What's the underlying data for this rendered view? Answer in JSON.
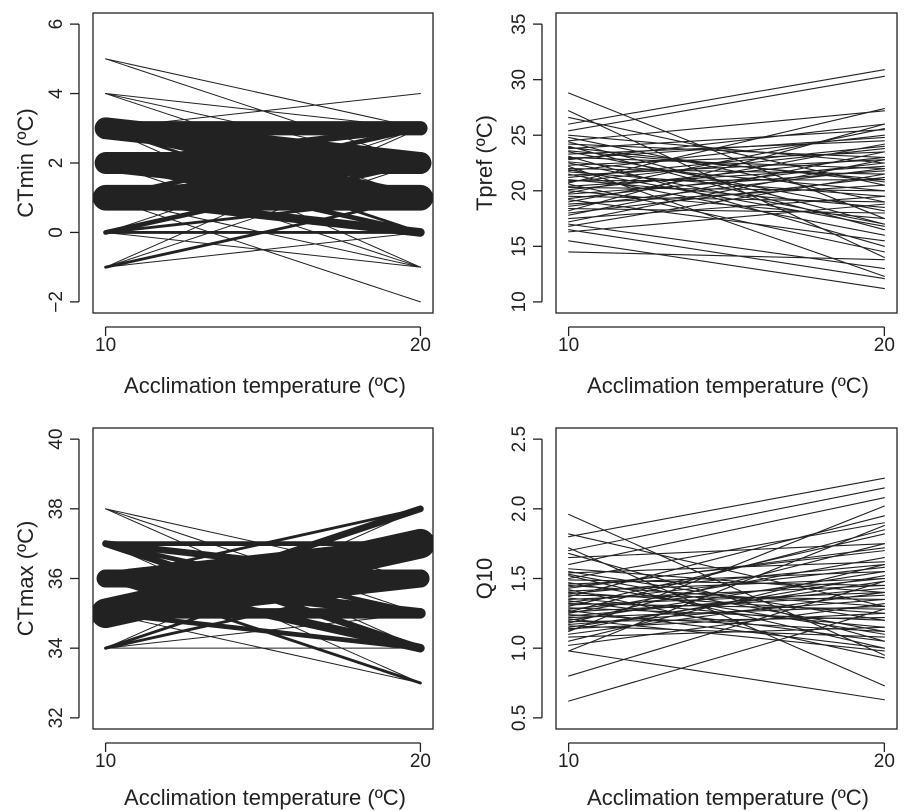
{
  "chart_data": [
    {
      "type": "line",
      "xlabel": "Acclimation temperature (ºC)",
      "ylabel": "CTmin (ºC)",
      "x": [
        10,
        20
      ],
      "xticks": [
        "10",
        "20"
      ],
      "ylim": [
        -2,
        6
      ],
      "yticks": [
        "−2",
        "0",
        "2",
        "4",
        "6"
      ],
      "grid": false,
      "series": [
        {
          "values": [
            5,
            3
          ],
          "weight": 1
        },
        {
          "values": [
            5,
            2
          ],
          "weight": 1
        },
        {
          "values": [
            4,
            3
          ],
          "weight": 1
        },
        {
          "values": [
            4,
            2
          ],
          "weight": 1
        },
        {
          "values": [
            4,
            1
          ],
          "weight": 1
        },
        {
          "values": [
            3,
            3
          ],
          "weight": 8
        },
        {
          "values": [
            3,
            2
          ],
          "weight": 12
        },
        {
          "values": [
            3,
            1
          ],
          "weight": 6
        },
        {
          "values": [
            3,
            0
          ],
          "weight": 2
        },
        {
          "values": [
            3,
            -1
          ],
          "weight": 1
        },
        {
          "values": [
            3,
            4
          ],
          "weight": 1
        },
        {
          "values": [
            2,
            3
          ],
          "weight": 4
        },
        {
          "values": [
            2,
            2
          ],
          "weight": 12
        },
        {
          "values": [
            2,
            1
          ],
          "weight": 10
        },
        {
          "values": [
            2,
            0
          ],
          "weight": 3
        },
        {
          "values": [
            2,
            -1
          ],
          "weight": 1
        },
        {
          "values": [
            1,
            3
          ],
          "weight": 3
        },
        {
          "values": [
            1,
            2
          ],
          "weight": 6
        },
        {
          "values": [
            1,
            1
          ],
          "weight": 14
        },
        {
          "values": [
            1,
            0
          ],
          "weight": 5
        },
        {
          "values": [
            1,
            -1
          ],
          "weight": 1
        },
        {
          "values": [
            1,
            -2
          ],
          "weight": 1
        },
        {
          "values": [
            0,
            3
          ],
          "weight": 1
        },
        {
          "values": [
            0,
            2
          ],
          "weight": 3
        },
        {
          "values": [
            0,
            1
          ],
          "weight": 2
        },
        {
          "values": [
            0,
            0
          ],
          "weight": 2
        },
        {
          "values": [
            0,
            -1
          ],
          "weight": 1
        },
        {
          "values": [
            -1,
            1
          ],
          "weight": 2
        },
        {
          "values": [
            -1,
            2
          ],
          "weight": 1
        },
        {
          "values": [
            -1,
            0
          ],
          "weight": 1
        },
        {
          "values": [
            -1,
            3
          ],
          "weight": 1
        }
      ]
    },
    {
      "type": "line",
      "xlabel": "Acclimation temperature (ºC)",
      "ylabel": "Tpref (ºC)",
      "x": [
        10,
        20
      ],
      "xticks": [
        "10",
        "20"
      ],
      "ylim": [
        10,
        35
      ],
      "yticks": [
        "10",
        "15",
        "20",
        "25",
        "30",
        "35"
      ],
      "grid": false,
      "series": [
        {
          "values": [
            28.8,
            17.5
          ]
        },
        {
          "values": [
            27.2,
            14.0
          ]
        },
        {
          "values": [
            26.6,
            20.5
          ]
        },
        {
          "values": [
            26.0,
            30.9
          ]
        },
        {
          "values": [
            25.4,
            30.3
          ]
        },
        {
          "values": [
            25.0,
            22.5
          ]
        },
        {
          "values": [
            24.8,
            19.0
          ]
        },
        {
          "values": [
            24.5,
            27.2
          ]
        },
        {
          "values": [
            24.2,
            23.0
          ]
        },
        {
          "values": [
            24.0,
            16.5
          ]
        },
        {
          "values": [
            23.8,
            25.5
          ]
        },
        {
          "values": [
            23.6,
            21.0
          ]
        },
        {
          "values": [
            23.5,
            18.2
          ]
        },
        {
          "values": [
            23.3,
            24.5
          ]
        },
        {
          "values": [
            23.1,
            15.0
          ]
        },
        {
          "values": [
            23.0,
            22.0
          ]
        },
        {
          "values": [
            22.8,
            26.0
          ]
        },
        {
          "values": [
            22.6,
            20.0
          ]
        },
        {
          "values": [
            22.5,
            17.0
          ]
        },
        {
          "values": [
            22.3,
            23.5
          ]
        },
        {
          "values": [
            22.2,
            12.3
          ]
        },
        {
          "values": [
            22.0,
            21.5
          ]
        },
        {
          "values": [
            21.8,
            25.0
          ]
        },
        {
          "values": [
            21.7,
            19.5
          ]
        },
        {
          "values": [
            21.5,
            16.0
          ]
        },
        {
          "values": [
            21.4,
            22.8
          ]
        },
        {
          "values": [
            21.2,
            24.0
          ]
        },
        {
          "values": [
            21.0,
            18.5
          ]
        },
        {
          "values": [
            20.9,
            21.0
          ]
        },
        {
          "values": [
            20.7,
            27.4
          ]
        },
        {
          "values": [
            20.6,
            14.5
          ]
        },
        {
          "values": [
            20.4,
            22.2
          ]
        },
        {
          "values": [
            20.3,
            20.0
          ]
        },
        {
          "values": [
            20.1,
            23.0
          ]
        },
        {
          "values": [
            20.0,
            17.5
          ]
        },
        {
          "values": [
            19.8,
            25.6
          ]
        },
        {
          "values": [
            19.7,
            21.8
          ]
        },
        {
          "values": [
            19.5,
            19.0
          ]
        },
        {
          "values": [
            19.3,
            22.5
          ]
        },
        {
          "values": [
            19.2,
            15.5
          ]
        },
        {
          "values": [
            19.0,
            24.2
          ]
        },
        {
          "values": [
            18.8,
            20.5
          ]
        },
        {
          "values": [
            18.6,
            22.0
          ]
        },
        {
          "values": [
            18.4,
            18.0
          ]
        },
        {
          "values": [
            18.2,
            26.0
          ]
        },
        {
          "values": [
            18.0,
            21.2
          ]
        },
        {
          "values": [
            17.8,
            23.5
          ]
        },
        {
          "values": [
            17.5,
            19.5
          ]
        },
        {
          "values": [
            17.2,
            22.8
          ]
        },
        {
          "values": [
            17.0,
            13.0
          ]
        },
        {
          "values": [
            16.8,
            21.5
          ]
        },
        {
          "values": [
            16.5,
            12.1
          ]
        },
        {
          "values": [
            16.3,
            18.8
          ]
        },
        {
          "values": [
            15.5,
            11.2
          ]
        },
        {
          "values": [
            14.5,
            13.8
          ]
        },
        {
          "values": [
            24.4,
            17.0
          ]
        },
        {
          "values": [
            23.9,
            20.8
          ]
        },
        {
          "values": [
            22.9,
            24.8
          ]
        },
        {
          "values": [
            21.9,
            16.8
          ]
        },
        {
          "values": [
            20.8,
            23.8
          ]
        }
      ]
    },
    {
      "type": "line",
      "xlabel": "Acclimation temperature (ºC)",
      "ylabel": "CTmax (ºC)",
      "x": [
        10,
        20
      ],
      "xticks": [
        "10",
        "20"
      ],
      "ylim": [
        32,
        40
      ],
      "yticks": [
        "32",
        "34",
        "36",
        "38",
        "40"
      ],
      "grid": false,
      "series": [
        {
          "values": [
            38,
            35
          ],
          "weight": 1
        },
        {
          "values": [
            38,
            34
          ],
          "weight": 1
        },
        {
          "values": [
            38,
            36
          ],
          "weight": 1
        },
        {
          "values": [
            37,
            37
          ],
          "weight": 3
        },
        {
          "values": [
            37,
            36
          ],
          "weight": 4
        },
        {
          "values": [
            37,
            35
          ],
          "weight": 3
        },
        {
          "values": [
            37,
            34
          ],
          "weight": 4
        },
        {
          "values": [
            37,
            33
          ],
          "weight": 1
        },
        {
          "values": [
            36,
            38
          ],
          "weight": 2
        },
        {
          "values": [
            36,
            37
          ],
          "weight": 8
        },
        {
          "values": [
            36,
            36
          ],
          "weight": 10
        },
        {
          "values": [
            36,
            35
          ],
          "weight": 6
        },
        {
          "values": [
            36,
            34
          ],
          "weight": 5
        },
        {
          "values": [
            36,
            33
          ],
          "weight": 2
        },
        {
          "values": [
            35,
            38
          ],
          "weight": 4
        },
        {
          "values": [
            35,
            37
          ],
          "weight": 16
        },
        {
          "values": [
            35,
            36
          ],
          "weight": 10
        },
        {
          "values": [
            35,
            35
          ],
          "weight": 6
        },
        {
          "values": [
            35,
            34
          ],
          "weight": 3
        },
        {
          "values": [
            35,
            33
          ],
          "weight": 1
        },
        {
          "values": [
            34,
            37
          ],
          "weight": 2
        },
        {
          "values": [
            34,
            36
          ],
          "weight": 2
        },
        {
          "values": [
            34,
            35
          ],
          "weight": 1
        },
        {
          "values": [
            34,
            34
          ],
          "weight": 1
        },
        {
          "values": [
            34,
            38
          ],
          "weight": 1
        }
      ]
    },
    {
      "type": "line",
      "xlabel": "Acclimation temperature (ºC)",
      "ylabel": "Q10",
      "x": [
        10,
        20
      ],
      "xticks": [
        "10",
        "20"
      ],
      "ylim": [
        0.5,
        2.5
      ],
      "yticks": [
        "0.5",
        "1.0",
        "1.5",
        "2.0",
        "2.5"
      ],
      "grid": false,
      "series": [
        {
          "values": [
            1.96,
            0.95
          ]
        },
        {
          "values": [
            1.82,
            1.3
          ]
        },
        {
          "values": [
            1.8,
            2.22
          ]
        },
        {
          "values": [
            1.72,
            0.73
          ]
        },
        {
          "values": [
            1.7,
            2.15
          ]
        },
        {
          "values": [
            1.68,
            1.05
          ]
        },
        {
          "values": [
            1.65,
            1.75
          ]
        },
        {
          "values": [
            1.6,
            2.08
          ]
        },
        {
          "values": [
            1.57,
            1.4
          ]
        },
        {
          "values": [
            1.55,
            1.2
          ]
        },
        {
          "values": [
            1.54,
            1.62
          ]
        },
        {
          "values": [
            1.52,
            1.0
          ]
        },
        {
          "values": [
            1.5,
            1.9
          ]
        },
        {
          "values": [
            1.49,
            1.45
          ]
        },
        {
          "values": [
            1.47,
            1.1
          ]
        },
        {
          "values": [
            1.46,
            1.55
          ]
        },
        {
          "values": [
            1.45,
            1.3
          ]
        },
        {
          "values": [
            1.44,
            1.7
          ]
        },
        {
          "values": [
            1.42,
            0.93
          ]
        },
        {
          "values": [
            1.41,
            1.5
          ]
        },
        {
          "values": [
            1.4,
            1.25
          ]
        },
        {
          "values": [
            1.39,
            1.6
          ]
        },
        {
          "values": [
            1.38,
            1.35
          ]
        },
        {
          "values": [
            1.37,
            1.95
          ]
        },
        {
          "values": [
            1.36,
            1.15
          ]
        },
        {
          "values": [
            1.35,
            1.45
          ]
        },
        {
          "values": [
            1.34,
            1.05
          ]
        },
        {
          "values": [
            1.33,
            1.58
          ]
        },
        {
          "values": [
            1.32,
            1.28
          ]
        },
        {
          "values": [
            1.31,
            1.4
          ]
        },
        {
          "values": [
            1.3,
            1.82
          ]
        },
        {
          "values": [
            1.29,
            1.2
          ]
        },
        {
          "values": [
            1.28,
            1.5
          ]
        },
        {
          "values": [
            1.27,
            1.0
          ]
        },
        {
          "values": [
            1.26,
            1.38
          ]
        },
        {
          "values": [
            1.25,
            1.65
          ]
        },
        {
          "values": [
            1.24,
            1.12
          ]
        },
        {
          "values": [
            1.23,
            1.43
          ]
        },
        {
          "values": [
            1.22,
            1.3
          ]
        },
        {
          "values": [
            1.21,
            0.98
          ]
        },
        {
          "values": [
            1.2,
            1.55
          ]
        },
        {
          "values": [
            1.19,
            1.22
          ]
        },
        {
          "values": [
            1.18,
            1.75
          ]
        },
        {
          "values": [
            1.17,
            1.35
          ]
        },
        {
          "values": [
            1.16,
            1.08
          ]
        },
        {
          "values": [
            1.15,
            1.48
          ]
        },
        {
          "values": [
            1.14,
            1.25
          ]
        },
        {
          "values": [
            1.12,
            2.02
          ]
        },
        {
          "values": [
            1.1,
            1.4
          ]
        },
        {
          "values": [
            1.08,
            1.15
          ]
        },
        {
          "values": [
            1.05,
            1.6
          ]
        },
        {
          "values": [
            1.02,
            1.32
          ]
        },
        {
          "values": [
            0.98,
            1.88
          ]
        },
        {
          "values": [
            0.8,
            1.48
          ]
        },
        {
          "values": [
            0.62,
            1.28
          ]
        },
        {
          "values": [
            0.98,
            0.63
          ]
        },
        {
          "values": [
            1.43,
            1.72
          ]
        },
        {
          "values": [
            1.53,
            1.12
          ]
        },
        {
          "values": [
            1.26,
            1.85
          ]
        },
        {
          "values": [
            1.13,
            1.52
          ]
        }
      ]
    }
  ]
}
